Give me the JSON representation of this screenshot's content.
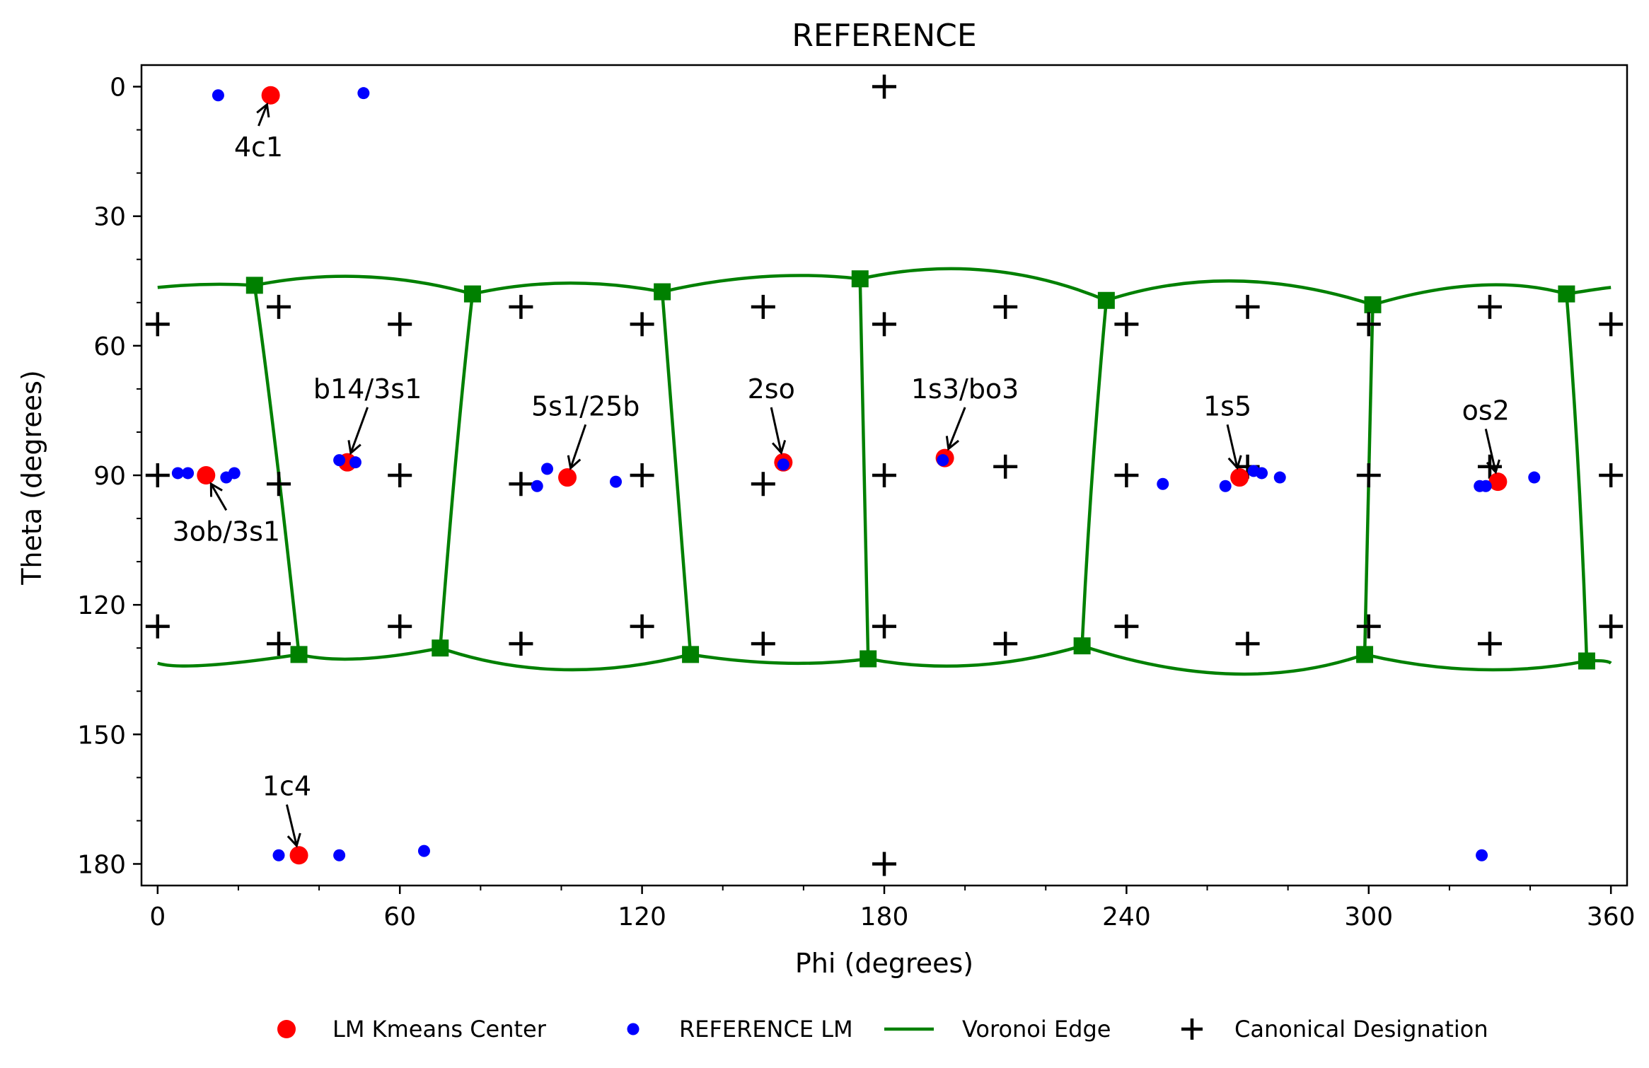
{
  "chart_data": {
    "type": "scatter",
    "title": "REFERENCE",
    "xlabel": "Phi (degrees)",
    "ylabel": "Theta (degrees)",
    "xlim": [
      -4,
      364
    ],
    "ylim": [
      185,
      -5
    ],
    "y_inverted": true,
    "xticks": [
      0,
      60,
      120,
      180,
      240,
      300,
      360
    ],
    "yticks": [
      0,
      30,
      60,
      90,
      120,
      150,
      180
    ],
    "x_minor_step": 20,
    "y_minor_step": 10,
    "grid": false,
    "legend_position": "below",
    "colors": {
      "kmeans_center": "#ff0000",
      "reference_lm": "#0000ff",
      "voronoi_edge": "#008000",
      "canonical": "#000000"
    },
    "legend": [
      {
        "label": "LM Kmeans Center",
        "kind": "kmeans_center"
      },
      {
        "label": "REFERENCE LM",
        "kind": "reference_lm"
      },
      {
        "label": "Voronoi Edge",
        "kind": "voronoi_edge"
      },
      {
        "label": "Canonical Designation",
        "kind": "canonical"
      }
    ],
    "kmeans_centers": [
      {
        "x": 28,
        "y": 2
      },
      {
        "x": 12,
        "y": 90
      },
      {
        "x": 47,
        "y": 87
      },
      {
        "x": 101.5,
        "y": 90.5
      },
      {
        "x": 155,
        "y": 87
      },
      {
        "x": 195,
        "y": 86
      },
      {
        "x": 268,
        "y": 90.5
      },
      {
        "x": 332,
        "y": 91.5
      },
      {
        "x": 35,
        "y": 178
      }
    ],
    "reference_lm": [
      {
        "x": 15,
        "y": 2
      },
      {
        "x": 51,
        "y": 1.5
      },
      {
        "x": 5,
        "y": 89.5
      },
      {
        "x": 7.5,
        "y": 89.5
      },
      {
        "x": 17,
        "y": 90.5
      },
      {
        "x": 19,
        "y": 89.5
      },
      {
        "x": 45,
        "y": 86.5
      },
      {
        "x": 49,
        "y": 87
      },
      {
        "x": 94,
        "y": 92.5
      },
      {
        "x": 96.5,
        "y": 88.5
      },
      {
        "x": 113.5,
        "y": 91.5
      },
      {
        "x": 155,
        "y": 87.5
      },
      {
        "x": 194.5,
        "y": 86.5
      },
      {
        "x": 249,
        "y": 92
      },
      {
        "x": 264.5,
        "y": 92.5
      },
      {
        "x": 271.5,
        "y": 89
      },
      {
        "x": 273.5,
        "y": 89.5
      },
      {
        "x": 278,
        "y": 90.5
      },
      {
        "x": 327.5,
        "y": 92.5
      },
      {
        "x": 329,
        "y": 92.5
      },
      {
        "x": 341,
        "y": 90.5
      },
      {
        "x": 30,
        "y": 178
      },
      {
        "x": 45,
        "y": 178
      },
      {
        "x": 66,
        "y": 177
      },
      {
        "x": 328,
        "y": 178
      }
    ],
    "canonical": [
      {
        "x": 180,
        "y": 0
      },
      {
        "x": 0,
        "y": 55
      },
      {
        "x": 60,
        "y": 55
      },
      {
        "x": 120,
        "y": 55
      },
      {
        "x": 180,
        "y": 55
      },
      {
        "x": 240,
        "y": 55
      },
      {
        "x": 300,
        "y": 55
      },
      {
        "x": 360,
        "y": 55
      },
      {
        "x": 30,
        "y": 51
      },
      {
        "x": 90,
        "y": 51
      },
      {
        "x": 150,
        "y": 51
      },
      {
        "x": 210,
        "y": 51
      },
      {
        "x": 270,
        "y": 51
      },
      {
        "x": 330,
        "y": 51
      },
      {
        "x": 0,
        "y": 90
      },
      {
        "x": 60,
        "y": 90
      },
      {
        "x": 120,
        "y": 90
      },
      {
        "x": 180,
        "y": 90
      },
      {
        "x": 240,
        "y": 90
      },
      {
        "x": 300,
        "y": 90
      },
      {
        "x": 360,
        "y": 90
      },
      {
        "x": 30,
        "y": 92
      },
      {
        "x": 90,
        "y": 92
      },
      {
        "x": 150,
        "y": 92
      },
      {
        "x": 210,
        "y": 88
      },
      {
        "x": 270,
        "y": 88
      },
      {
        "x": 330,
        "y": 88
      },
      {
        "x": 0,
        "y": 125
      },
      {
        "x": 60,
        "y": 125
      },
      {
        "x": 120,
        "y": 125
      },
      {
        "x": 180,
        "y": 125
      },
      {
        "x": 240,
        "y": 125
      },
      {
        "x": 300,
        "y": 125
      },
      {
        "x": 360,
        "y": 125
      },
      {
        "x": 30,
        "y": 129
      },
      {
        "x": 90,
        "y": 129
      },
      {
        "x": 150,
        "y": 129
      },
      {
        "x": 210,
        "y": 129
      },
      {
        "x": 270,
        "y": 129
      },
      {
        "x": 330,
        "y": 129
      },
      {
        "x": 180,
        "y": 180
      }
    ],
    "voronoi_vertices": [
      {
        "x": 24,
        "y": 46
      },
      {
        "x": 78,
        "y": 48
      },
      {
        "x": 125,
        "y": 47.5
      },
      {
        "x": 174,
        "y": 44.5
      },
      {
        "x": 235,
        "y": 49.5
      },
      {
        "x": 301,
        "y": 50.5
      },
      {
        "x": 349,
        "y": 48
      },
      {
        "x": 35,
        "y": 131.5
      },
      {
        "x": 70,
        "y": 130
      },
      {
        "x": 132,
        "y": 131.5
      },
      {
        "x": 176,
        "y": 132.5
      },
      {
        "x": 229,
        "y": 129.5
      },
      {
        "x": 299,
        "y": 131.5
      },
      {
        "x": 354,
        "y": 133
      }
    ],
    "voronoi_edges": [
      [
        [
          0,
          46.5
        ],
        [
          12,
          45.8
        ],
        [
          24,
          46
        ]
      ],
      [
        [
          24,
          46
        ],
        [
          51,
          44
        ],
        [
          78,
          48
        ]
      ],
      [
        [
          78,
          48
        ],
        [
          101,
          45.5
        ],
        [
          125,
          47.5
        ]
      ],
      [
        [
          125,
          47.5
        ],
        [
          150,
          44
        ],
        [
          174,
          44.5
        ]
      ],
      [
        [
          174,
          44.5
        ],
        [
          205,
          42.5
        ],
        [
          235,
          49.5
        ]
      ],
      [
        [
          235,
          49.5
        ],
        [
          267,
          45
        ],
        [
          301,
          50.5
        ]
      ],
      [
        [
          301,
          50.5
        ],
        [
          327,
          46
        ],
        [
          349,
          48
        ]
      ],
      [
        [
          349,
          48
        ],
        [
          356,
          47
        ],
        [
          360,
          46.5
        ]
      ],
      [
        [
          0,
          133.5
        ],
        [
          12,
          134
        ],
        [
          35,
          131.5
        ]
      ],
      [
        [
          35,
          131.5
        ],
        [
          50,
          132.5
        ],
        [
          70,
          130
        ]
      ],
      [
        [
          70,
          130
        ],
        [
          100,
          135
        ],
        [
          132,
          131.5
        ]
      ],
      [
        [
          132,
          131.5
        ],
        [
          155,
          133.5
        ],
        [
          176,
          132.5
        ]
      ],
      [
        [
          176,
          132.5
        ],
        [
          202,
          134
        ],
        [
          229,
          129.5
        ]
      ],
      [
        [
          229,
          129.5
        ],
        [
          266,
          136
        ],
        [
          299,
          131.5
        ]
      ],
      [
        [
          299,
          131.5
        ],
        [
          327,
          135
        ],
        [
          354,
          133
        ]
      ],
      [
        [
          354,
          133
        ],
        [
          358,
          133
        ],
        [
          360,
          133.5
        ]
      ],
      [
        [
          24,
          46
        ],
        [
          29,
          82
        ],
        [
          35,
          131.5
        ]
      ],
      [
        [
          78,
          48
        ],
        [
          74,
          85
        ],
        [
          70,
          130
        ]
      ],
      [
        [
          125,
          47.5
        ],
        [
          128.5,
          90
        ],
        [
          132,
          131.5
        ]
      ],
      [
        [
          174,
          44.5
        ],
        [
          175,
          88
        ],
        [
          176,
          132.5
        ]
      ],
      [
        [
          235,
          49.5
        ],
        [
          231.5,
          90
        ],
        [
          229,
          129.5
        ]
      ],
      [
        [
          301,
          50.5
        ],
        [
          300,
          91
        ],
        [
          299,
          131.5
        ]
      ],
      [
        [
          349,
          48
        ],
        [
          352,
          90
        ],
        [
          354,
          133
        ]
      ]
    ],
    "annotations": [
      {
        "text": "4c1",
        "x": 28,
        "y": 2,
        "text_x": 25,
        "text_y": 14
      },
      {
        "text": "3ob/3s1",
        "x": 12,
        "y": 90,
        "text_x": 17,
        "text_y": 103
      },
      {
        "text": "b14/3s1",
        "x": 47,
        "y": 87,
        "text_x": 52,
        "text_y": 70
      },
      {
        "text": "5s1/25b",
        "x": 101.5,
        "y": 90.5,
        "text_x": 106,
        "text_y": 74
      },
      {
        "text": "2so",
        "x": 155,
        "y": 87,
        "text_x": 152,
        "text_y": 70
      },
      {
        "text": "1s3/bo3",
        "x": 195,
        "y": 86,
        "text_x": 200,
        "text_y": 70
      },
      {
        "text": "1s5",
        "x": 268,
        "y": 90.5,
        "text_x": 265,
        "text_y": 74
      },
      {
        "text": "os2",
        "x": 332,
        "y": 91.5,
        "text_x": 329,
        "text_y": 75
      },
      {
        "text": "1c4",
        "x": 35,
        "y": 178,
        "text_x": 32,
        "text_y": 162
      }
    ]
  }
}
